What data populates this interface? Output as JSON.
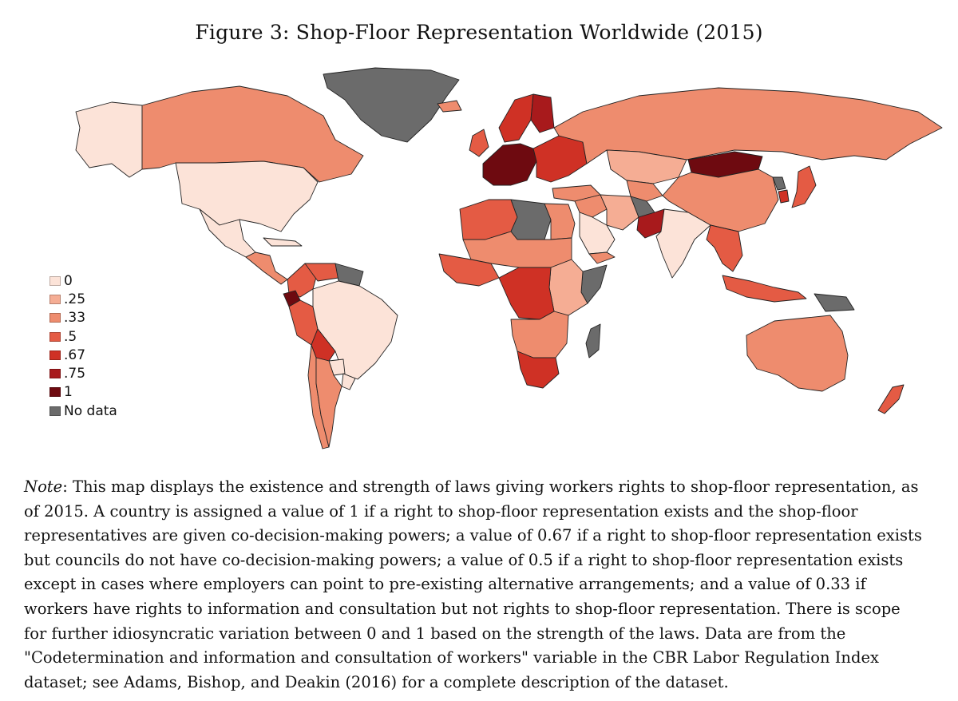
{
  "figure": {
    "title": "Figure 3: Shop-Floor Representation Worldwide (2015)"
  },
  "legend": [
    {
      "label": "0",
      "value": 0,
      "color": "#fce3d8"
    },
    {
      "label": ".25",
      "value": 0.25,
      "color": "#f5ad94"
    },
    {
      "label": ".33",
      "value": 0.33,
      "color": "#ee8c6e"
    },
    {
      "label": ".5",
      "value": 0.5,
      "color": "#e45b44"
    },
    {
      "label": ".67",
      "value": 0.67,
      "color": "#cf3125"
    },
    {
      "label": ".75",
      "value": 0.75,
      "color": "#a81a1c"
    },
    {
      "label": "1",
      "value": 1,
      "color": "#6e0a10"
    },
    {
      "label": "No data",
      "value": null,
      "color": "#6b6b6b"
    }
  ],
  "regions": {
    "greenland": "No data",
    "alaska": "0",
    "canada": ".33",
    "usa": "0",
    "mexico": "0",
    "central_america": ".33",
    "cuba": "0",
    "colombia": ".5",
    "venezuela": ".5",
    "guianas": "No data",
    "ecuador": "1",
    "peru": ".5",
    "brazil": "0",
    "bolivia": ".67",
    "paraguay": "0",
    "chile": ".33",
    "argentina": ".33",
    "uruguay": "0",
    "iceland": ".33",
    "uk_ireland": ".5",
    "scandinavia": ".67",
    "finland": ".75",
    "western_europe": "1",
    "eastern_europe": ".67",
    "russia": ".33",
    "kazakhstan": ".25",
    "central_asia": ".33",
    "mongolia": "1",
    "china": ".33",
    "north_korea": "No data",
    "japan": ".5",
    "south_korea": ".67",
    "turkey": ".33",
    "middle_east": ".33",
    "saudi_arabia": "0",
    "iran": ".25",
    "afghanistan": "No data",
    "pakistan": ".75",
    "india": "0",
    "southeast_asia": ".5",
    "indonesia": ".5",
    "papua": "No data",
    "australia": ".33",
    "new_zealand": ".5",
    "north_africa_west": ".5",
    "libya": "No data",
    "egypt": ".33",
    "sahel": ".33",
    "west_africa": ".5",
    "central_africa": ".67",
    "east_africa": ".25",
    "southern_africa": ".33",
    "south_africa": ".67",
    "madagascar": "No data",
    "yemen": ".33",
    "somalia": "No data"
  },
  "note": {
    "label": "Note",
    "lines": [
      ": This map displays the existence and strength of laws giving workers rights to shop-floor representation, as",
      "of 2015.  A country is assigned a value of 1 if a right to shop-floor representation exists and the shop-floor",
      "representatives are given co-decision-making powers; a value of 0.67 if a right to shop-floor representation exists",
      "but councils do not have co-decision-making powers; a value of 0.5 if a right to shop-floor representation exists",
      "except in cases where employers can point to pre-existing alternative arrangements; and a value of 0.33 if",
      "workers have rights to information and consultation but not rights to shop-floor representation.  There is scope",
      "for further idiosyncratic variation between 0 and 1 based on the strength of the laws.  Data are from the",
      "\"Codetermination and information and consultation of workers\" variable in the CBR Labor Regulation Index",
      "dataset; see Adams, Bishop, and Deakin (2016) for a complete description of the dataset."
    ]
  }
}
